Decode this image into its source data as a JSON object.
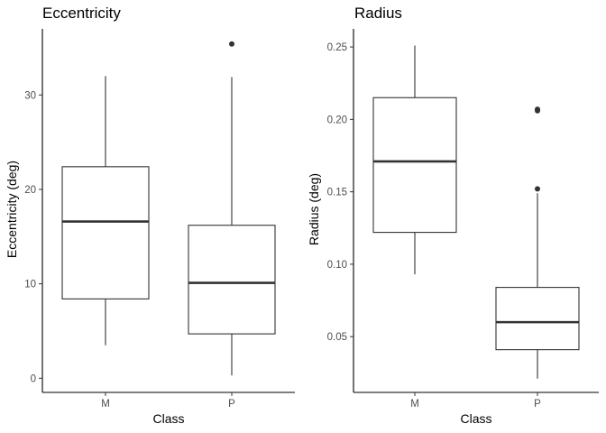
{
  "chart_data": [
    {
      "type": "boxplot",
      "title": "Eccentricity",
      "xlabel": "Class",
      "ylabel": "Eccentricity (deg)",
      "categories": [
        "M",
        "P"
      ],
      "ylim": [
        -1.5,
        37
      ],
      "yticks": [
        0,
        10,
        20,
        30
      ],
      "ytick_labels": [
        "0",
        "10",
        "20",
        "30"
      ],
      "grid": false,
      "boxes": [
        {
          "category": "M",
          "whisker_low": 3.5,
          "q1": 8.4,
          "median": 16.6,
          "q3": 22.4,
          "whisker_high": 32.0,
          "outliers": []
        },
        {
          "category": "P",
          "whisker_low": 0.3,
          "q1": 4.7,
          "median": 10.1,
          "q3": 16.2,
          "whisker_high": 31.9,
          "outliers": [
            35.4
          ]
        }
      ]
    },
    {
      "type": "boxplot",
      "title": "Radius",
      "xlabel": "Class",
      "ylabel": "Radius (deg)",
      "categories": [
        "M",
        "P"
      ],
      "ylim": [
        0.0115,
        0.2625
      ],
      "yticks": [
        0.05,
        0.1,
        0.15,
        0.2,
        0.25
      ],
      "ytick_labels": [
        "0.05",
        "0.10",
        "0.15",
        "0.20",
        "0.25"
      ],
      "grid": false,
      "boxes": [
        {
          "category": "M",
          "whisker_low": 0.093,
          "q1": 0.122,
          "median": 0.171,
          "q3": 0.215,
          "whisker_high": 0.251,
          "outliers": []
        },
        {
          "category": "P",
          "whisker_low": 0.021,
          "q1": 0.041,
          "median": 0.06,
          "q3": 0.084,
          "whisker_high": 0.149,
          "outliers": [
            0.152,
            0.206,
            0.207
          ]
        }
      ]
    }
  ]
}
